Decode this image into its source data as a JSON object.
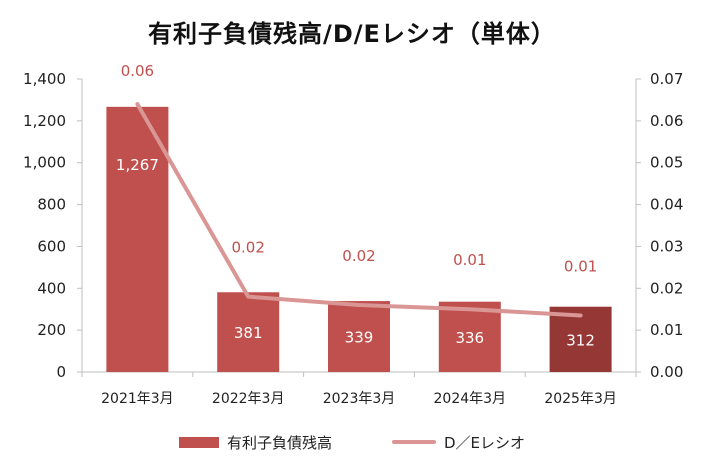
{
  "chart_data": {
    "type": "bar",
    "title": "有利子負債残高/D/Eレシオ（単体）",
    "categories": [
      "2021年3月",
      "2022年3月",
      "2023年3月",
      "2024年3月",
      "2025年3月"
    ],
    "series": [
      {
        "name": "有利子負債残高",
        "type": "bar",
        "axis": "left",
        "values": [
          1267,
          381,
          339,
          336,
          312
        ],
        "data_labels": [
          "1,267",
          "381",
          "339",
          "336",
          "312"
        ],
        "colors": [
          "#c0504d",
          "#c0504d",
          "#c0504d",
          "#c0504d",
          "#953735"
        ]
      },
      {
        "name": "D／Eレシオ",
        "type": "line",
        "axis": "right",
        "values": [
          0.064,
          0.018,
          0.016,
          0.015,
          0.0135
        ],
        "data_labels": [
          "0.06",
          "0.02",
          "0.02",
          "0.01",
          "0.01"
        ],
        "color": "#d99694",
        "label_color": "#c0504d"
      }
    ],
    "y_left": {
      "ylim": [
        0,
        1400
      ],
      "ticks": [
        0,
        200,
        400,
        600,
        800,
        1000,
        1200,
        1400
      ],
      "tick_labels": [
        "0",
        "200",
        "400",
        "600",
        "800",
        "1,000",
        "1,200",
        "1,400"
      ]
    },
    "y_right": {
      "ylim": [
        0,
        0.07
      ],
      "ticks": [
        0,
        0.01,
        0.02,
        0.03,
        0.04,
        0.05,
        0.06,
        0.07
      ],
      "tick_labels": [
        "0.00",
        "0.01",
        "0.02",
        "0.03",
        "0.04",
        "0.05",
        "0.06",
        "0.07"
      ]
    },
    "grid": false,
    "legend_position": "bottom"
  }
}
